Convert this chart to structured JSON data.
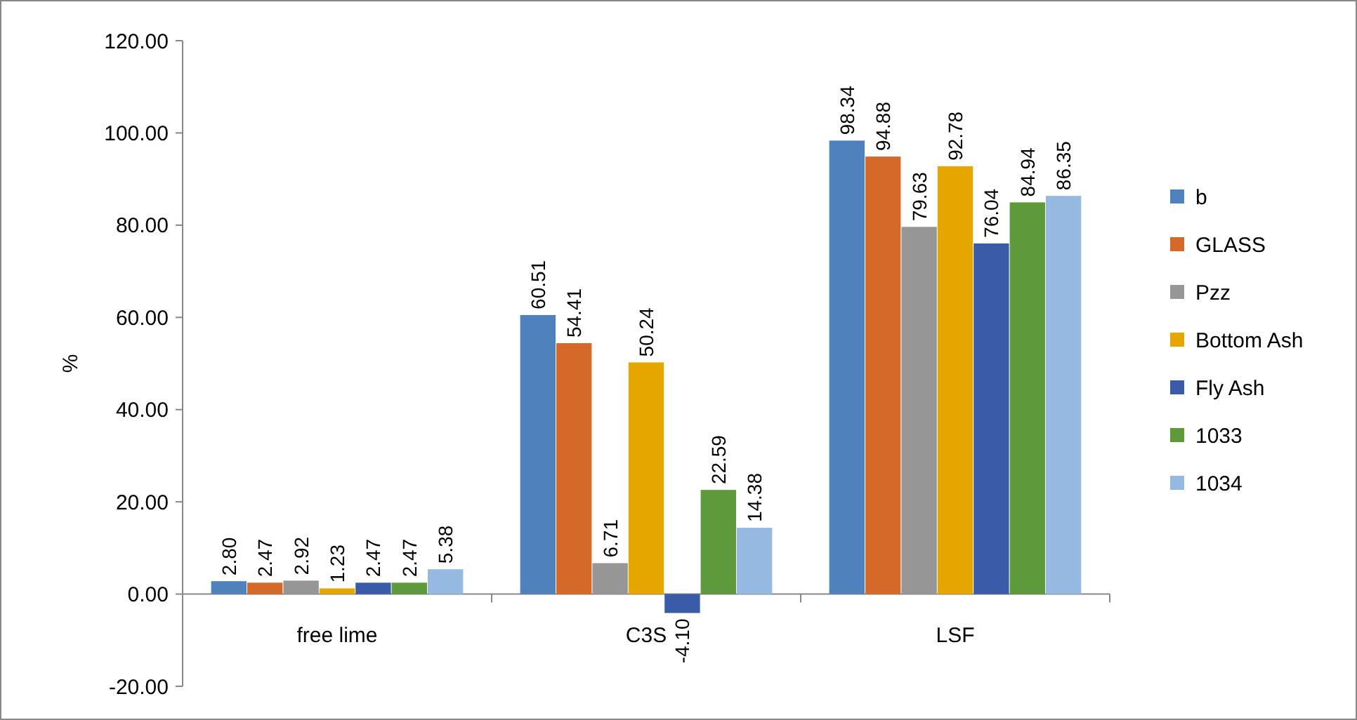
{
  "chart_data": {
    "type": "bar",
    "ylabel": "%",
    "categories": [
      "free lime",
      "C3S",
      "LSF"
    ],
    "series": [
      {
        "name": "b",
        "color": "#4f81bd",
        "values": [
          2.8,
          60.51,
          98.34
        ],
        "value_labels": [
          "2.80",
          "60.51",
          "98.34"
        ]
      },
      {
        "name": "GLASS",
        "color": "#d4692a",
        "values": [
          2.47,
          54.41,
          94.88
        ],
        "value_labels": [
          "2.47",
          "54.41",
          "94.88"
        ]
      },
      {
        "name": "Pzz",
        "color": "#969696",
        "values": [
          2.92,
          6.71,
          79.63
        ],
        "value_labels": [
          "2.92",
          "6.71",
          "79.63"
        ]
      },
      {
        "name": "Bottom Ash",
        "color": "#e6a600",
        "values": [
          1.23,
          50.24,
          92.78
        ],
        "value_labels": [
          "1.23",
          "50.24",
          "92.78"
        ]
      },
      {
        "name": "Fly Ash",
        "color": "#3a5ca8",
        "values": [
          2.47,
          -4.1,
          76.04
        ],
        "value_labels": [
          "2.47",
          "-4.10",
          "76.04"
        ]
      },
      {
        "name": "1033",
        "color": "#5e9a3c",
        "values": [
          2.47,
          22.59,
          84.94
        ],
        "value_labels": [
          "2.47",
          "22.59",
          "84.94"
        ]
      },
      {
        "name": "1034",
        "color": "#96b9e1",
        "values": [
          5.38,
          14.38,
          86.35
        ],
        "value_labels": [
          "5.38",
          "14.38",
          "86.35"
        ]
      }
    ],
    "ylim": [
      -20,
      120
    ],
    "yticks": [
      {
        "value": -20,
        "label": "-20.00"
      },
      {
        "value": 0,
        "label": "0.00"
      },
      {
        "value": 20,
        "label": "20.00"
      },
      {
        "value": 40,
        "label": "40.00"
      },
      {
        "value": 60,
        "label": "60.00"
      },
      {
        "value": 80,
        "label": "80.00"
      },
      {
        "value": 100,
        "label": "100.00"
      },
      {
        "value": 120,
        "label": "120.00"
      }
    ],
    "legend": "right",
    "grid": false
  }
}
